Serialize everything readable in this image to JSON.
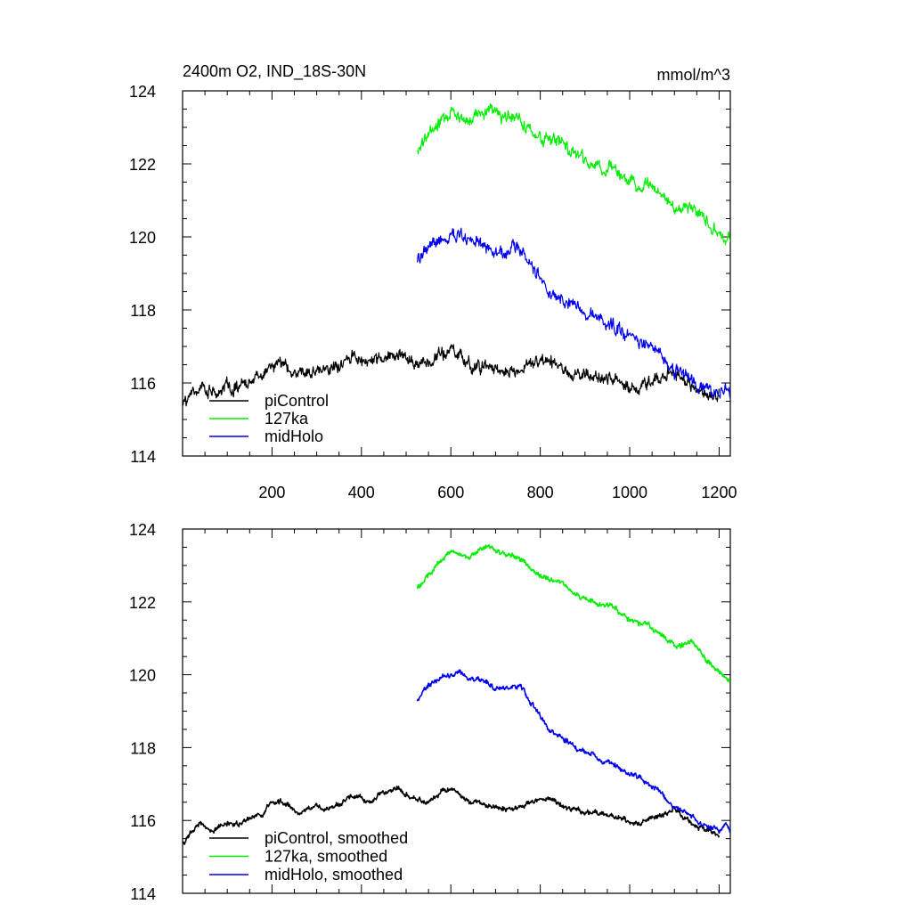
{
  "chart_data": [
    {
      "type": "line",
      "title_left": "2400m O2, IND_18S-30N",
      "title_right": "mmol/m^3",
      "xlim": [
        0,
        1225
      ],
      "ylim": [
        114,
        124
      ],
      "xticks": [
        200,
        400,
        600,
        800,
        1000,
        1200
      ],
      "xtick_labels": [
        "200",
        "400",
        "600",
        "800",
        "1000",
        "1200"
      ],
      "yticks": [
        114,
        116,
        118,
        120,
        122,
        124
      ],
      "ytick_labels": [
        "114",
        "116",
        "118",
        "120",
        "122",
        "124"
      ],
      "legend_position": "bottom-left",
      "series": [
        {
          "name": "piControl",
          "legend_label": "piControl",
          "color": "#000000",
          "x": [
            1,
            10,
            25,
            40,
            60,
            80,
            100,
            120,
            140,
            160,
            180,
            200,
            220,
            240,
            260,
            280,
            300,
            320,
            340,
            360,
            380,
            400,
            420,
            440,
            460,
            480,
            500,
            520,
            540,
            560,
            580,
            600,
            620,
            640,
            660,
            680,
            700,
            720,
            740,
            760,
            780,
            800,
            820,
            840,
            860,
            880,
            900,
            920,
            940,
            960,
            980,
            1000,
            1020,
            1040,
            1060,
            1080,
            1100,
            1120,
            1140,
            1160,
            1180,
            1200
          ],
          "y": [
            115.4,
            115.5,
            115.8,
            115.9,
            115.7,
            115.8,
            115.9,
            115.9,
            116.0,
            116.1,
            116.2,
            116.5,
            116.5,
            116.4,
            116.2,
            116.3,
            116.4,
            116.3,
            116.4,
            116.5,
            116.7,
            116.6,
            116.5,
            116.7,
            116.8,
            116.9,
            116.7,
            116.6,
            116.5,
            116.6,
            116.8,
            116.9,
            116.7,
            116.5,
            116.5,
            116.4,
            116.4,
            116.3,
            116.3,
            116.4,
            116.5,
            116.6,
            116.6,
            116.5,
            116.3,
            116.3,
            116.2,
            116.2,
            116.2,
            116.1,
            116.1,
            115.9,
            115.9,
            116.0,
            116.1,
            116.2,
            116.3,
            116.1,
            115.9,
            115.8,
            115.7,
            115.6
          ],
          "noise": 0.15
        },
        {
          "name": "127ka",
          "legend_label": "127ka",
          "color": "#00ee00",
          "x": [
            525,
            540,
            560,
            580,
            600,
            620,
            640,
            660,
            680,
            700,
            720,
            740,
            760,
            780,
            800,
            820,
            840,
            860,
            880,
            900,
            920,
            940,
            960,
            980,
            1000,
            1020,
            1040,
            1060,
            1080,
            1100,
            1120,
            1140,
            1160,
            1180,
            1200,
            1215,
            1225
          ],
          "y": [
            122.4,
            122.6,
            122.9,
            123.2,
            123.4,
            123.3,
            123.2,
            123.4,
            123.5,
            123.4,
            123.3,
            123.3,
            123.1,
            122.9,
            122.7,
            122.6,
            122.6,
            122.4,
            122.2,
            122.1,
            122.0,
            121.9,
            121.9,
            121.7,
            121.5,
            121.4,
            121.4,
            121.2,
            121.0,
            120.8,
            120.8,
            120.9,
            120.6,
            120.3,
            120.1,
            119.9,
            119.8
          ],
          "noise": 0.15
        },
        {
          "name": "midHolo",
          "legend_label": "midHolo",
          "color": "#0000ee",
          "x": [
            525,
            540,
            560,
            580,
            600,
            620,
            640,
            660,
            680,
            700,
            720,
            740,
            760,
            780,
            800,
            820,
            840,
            860,
            880,
            900,
            920,
            940,
            960,
            980,
            1000,
            1020,
            1040,
            1060,
            1080,
            1100,
            1120,
            1140,
            1160,
            1180,
            1200,
            1215,
            1225
          ],
          "y": [
            119.3,
            119.6,
            119.8,
            119.9,
            120.0,
            120.1,
            119.9,
            119.9,
            119.8,
            119.6,
            119.6,
            119.7,
            119.6,
            119.2,
            118.9,
            118.5,
            118.3,
            118.2,
            118.0,
            117.9,
            117.8,
            117.6,
            117.6,
            117.4,
            117.3,
            117.2,
            117.0,
            116.9,
            116.6,
            116.3,
            116.3,
            116.1,
            115.9,
            115.8,
            115.7,
            115.9,
            115.7
          ],
          "noise": 0.15
        }
      ],
      "legend": [
        "piControl",
        "127ka",
        "midHolo"
      ]
    },
    {
      "type": "line",
      "xlim": [
        0,
        1225
      ],
      "ylim": [
        114,
        124
      ],
      "xticks": [
        200,
        400,
        600,
        800,
        1000,
        1200
      ],
      "yticks": [
        114,
        116,
        118,
        120,
        122,
        124
      ],
      "ytick_labels": [
        "114",
        "116",
        "118",
        "120",
        "122",
        "124"
      ],
      "legend_position": "bottom-left",
      "series": [
        {
          "name": "piControl, smoothed",
          "legend_label": "piControl, smoothed",
          "color": "#000000",
          "x": [
            1,
            10,
            25,
            40,
            60,
            80,
            100,
            120,
            140,
            160,
            180,
            200,
            220,
            240,
            260,
            280,
            300,
            320,
            340,
            360,
            380,
            400,
            420,
            440,
            460,
            480,
            500,
            520,
            540,
            560,
            580,
            600,
            620,
            640,
            660,
            680,
            700,
            720,
            740,
            760,
            780,
            800,
            820,
            840,
            860,
            880,
            900,
            920,
            940,
            960,
            980,
            1000,
            1020,
            1040,
            1060,
            1080,
            1100,
            1120,
            1140,
            1160,
            1180,
            1200
          ],
          "y": [
            115.4,
            115.5,
            115.8,
            115.9,
            115.7,
            115.8,
            115.9,
            115.9,
            116.0,
            116.1,
            116.2,
            116.5,
            116.5,
            116.4,
            116.2,
            116.3,
            116.4,
            116.3,
            116.4,
            116.5,
            116.7,
            116.6,
            116.5,
            116.7,
            116.8,
            116.9,
            116.7,
            116.6,
            116.5,
            116.6,
            116.8,
            116.9,
            116.7,
            116.5,
            116.5,
            116.4,
            116.4,
            116.3,
            116.3,
            116.4,
            116.5,
            116.6,
            116.6,
            116.5,
            116.3,
            116.3,
            116.2,
            116.2,
            116.2,
            116.1,
            116.1,
            115.9,
            115.9,
            116.0,
            116.1,
            116.2,
            116.3,
            116.1,
            115.9,
            115.8,
            115.7,
            115.6
          ],
          "noise": 0.06
        },
        {
          "name": "127ka, smoothed",
          "legend_label": "127ka, smoothed",
          "color": "#00ee00",
          "x": [
            525,
            540,
            560,
            580,
            600,
            620,
            640,
            660,
            680,
            700,
            720,
            740,
            760,
            780,
            800,
            820,
            840,
            860,
            880,
            900,
            920,
            940,
            960,
            980,
            1000,
            1020,
            1040,
            1060,
            1080,
            1100,
            1120,
            1140,
            1160,
            1180,
            1200,
            1215,
            1225
          ],
          "y": [
            122.4,
            122.6,
            122.9,
            123.2,
            123.4,
            123.3,
            123.2,
            123.4,
            123.5,
            123.4,
            123.3,
            123.3,
            123.1,
            122.9,
            122.7,
            122.6,
            122.6,
            122.4,
            122.2,
            122.1,
            122.0,
            121.9,
            121.9,
            121.7,
            121.5,
            121.4,
            121.4,
            121.2,
            121.0,
            120.8,
            120.8,
            120.9,
            120.6,
            120.3,
            120.1,
            119.9,
            119.8
          ],
          "noise": 0.06
        },
        {
          "name": "midHolo, smoothed",
          "legend_label": "midHolo, smoothed",
          "color": "#0000ee",
          "x": [
            525,
            540,
            560,
            580,
            600,
            620,
            640,
            660,
            680,
            700,
            720,
            740,
            760,
            780,
            800,
            820,
            840,
            860,
            880,
            900,
            920,
            940,
            960,
            980,
            1000,
            1020,
            1040,
            1060,
            1080,
            1100,
            1120,
            1140,
            1160,
            1180,
            1200,
            1215,
            1225
          ],
          "y": [
            119.3,
            119.6,
            119.8,
            119.9,
            120.0,
            120.1,
            119.9,
            119.9,
            119.8,
            119.6,
            119.6,
            119.7,
            119.6,
            119.2,
            118.9,
            118.5,
            118.3,
            118.2,
            118.0,
            117.9,
            117.8,
            117.6,
            117.6,
            117.4,
            117.3,
            117.2,
            117.0,
            116.9,
            116.6,
            116.3,
            116.3,
            116.1,
            115.9,
            115.8,
            115.7,
            115.9,
            115.7
          ],
          "noise": 0.06
        }
      ],
      "legend": [
        "piControl, smoothed",
        "127ka, smoothed",
        "midHolo, smoothed"
      ]
    }
  ]
}
